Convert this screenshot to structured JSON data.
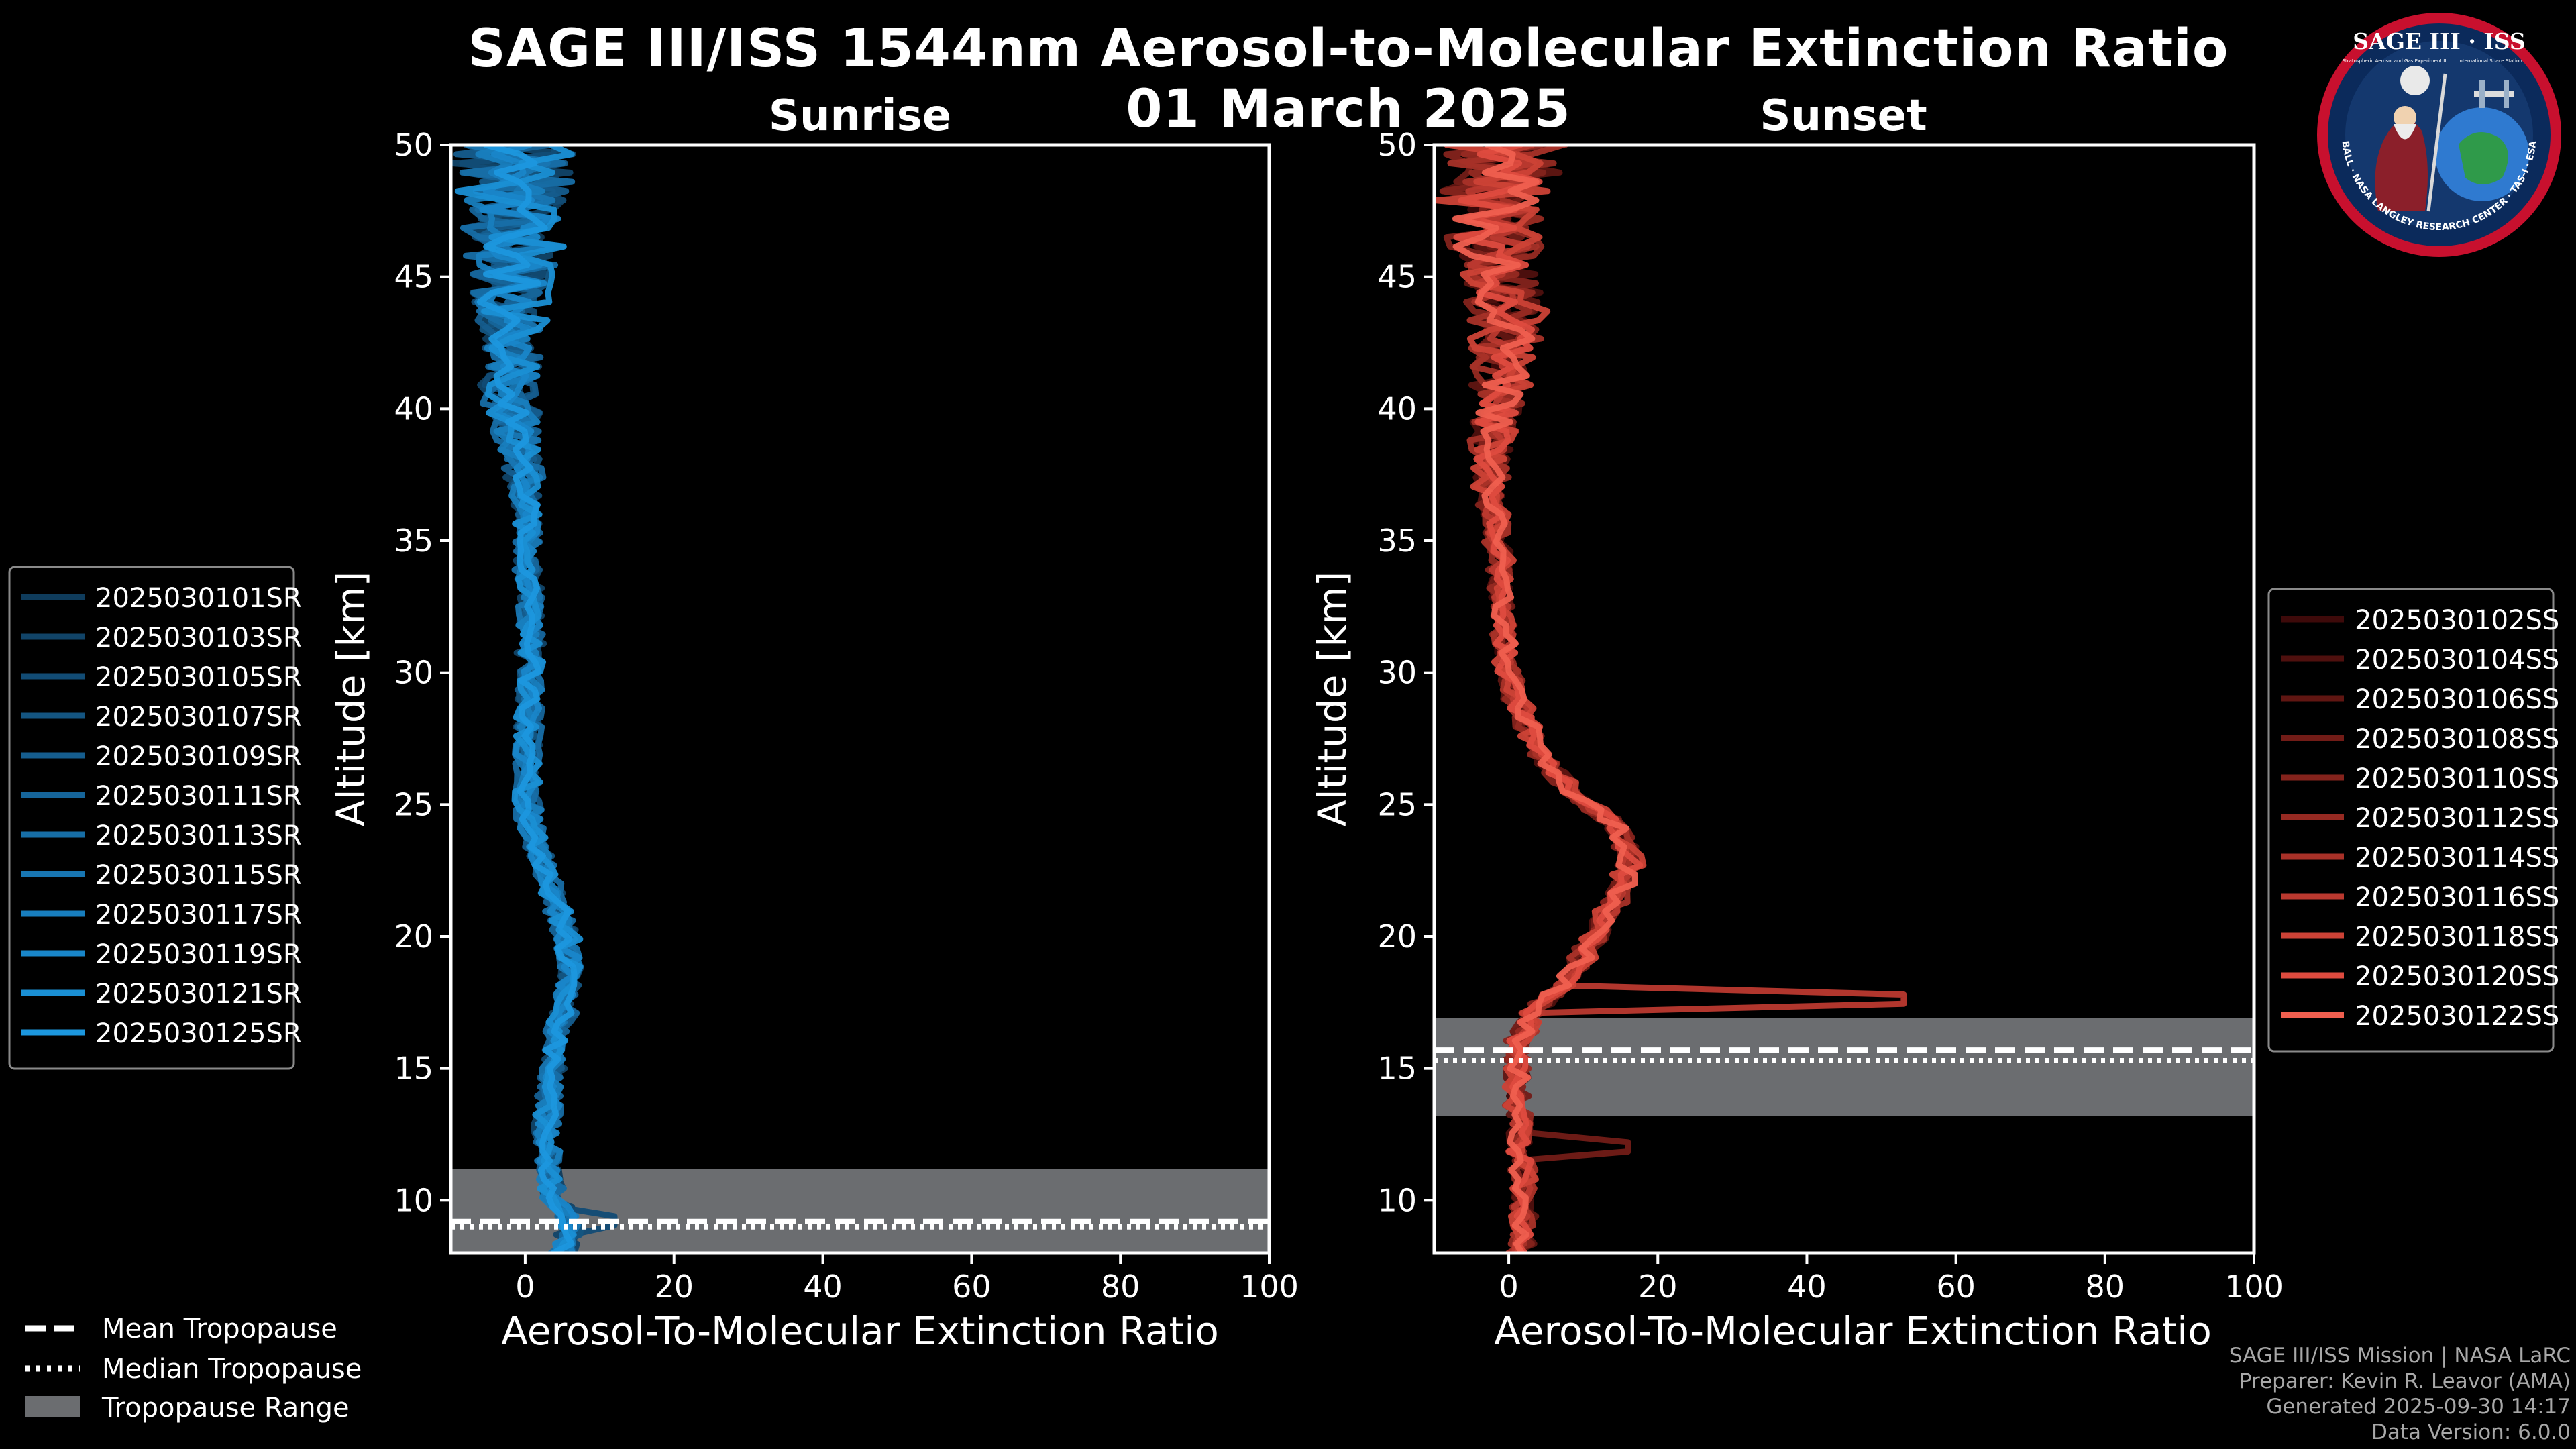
{
  "title": {
    "line1": "SAGE III/ISS 1544nm Aerosol-to-Molecular Extinction Ratio",
    "line2": "01 March 2025"
  },
  "colors": {
    "background": "#000000",
    "sunrise_base": "#1a8fd4",
    "sunset_base": "#ef5f4f",
    "tropopause_band": "#6b6d70"
  },
  "chart_data": [
    {
      "type": "line",
      "title": "Sunrise",
      "xlabel": "Aerosol-To-Molecular Extinction Ratio",
      "ylabel": "Altitude [km]",
      "xlim": [
        -10,
        100
      ],
      "ylim": [
        8,
        50
      ],
      "xticks": [
        0,
        20,
        40,
        60,
        80,
        100
      ],
      "yticks": [
        10,
        15,
        20,
        25,
        30,
        35,
        40,
        45,
        50
      ],
      "tropopause": {
        "mean": 9.2,
        "median": 9.2,
        "range": [
          8,
          11.2
        ]
      },
      "profile_altitudes": [
        8,
        8.5,
        9,
        9.5,
        10,
        11,
        12,
        13,
        14,
        15,
        16,
        17,
        18,
        19,
        20,
        21,
        22,
        23,
        24,
        25,
        26,
        27,
        28,
        29,
        30,
        31,
        32,
        33,
        34,
        35,
        36,
        37,
        38,
        39,
        40,
        41,
        42,
        43,
        44,
        45,
        46,
        47,
        48,
        49,
        50
      ],
      "mean_profile": [
        4.8,
        5.5,
        6.5,
        5.2,
        3.8,
        3.2,
        3.0,
        3.0,
        3.3,
        3.5,
        4.2,
        5.2,
        5.8,
        6.0,
        5.5,
        4.5,
        3.4,
        2.2,
        1.0,
        0.4,
        0.2,
        0.2,
        0.5,
        0.6,
        0.6,
        0.7,
        0.6,
        0.6,
        0.5,
        0.4,
        0.3,
        0.0,
        -0.5,
        -1.0,
        -1.6,
        -2.0,
        -2.2,
        -2.3,
        -2.0,
        -1.6,
        -1.4,
        -1.0,
        -1.2,
        -1.6,
        -1.6
      ],
      "series": [
        {
          "name": "2025030101SR",
          "color": "#0f3c5c"
        },
        {
          "name": "2025030103SR",
          "color": "#114468"
        },
        {
          "name": "2025030105SR",
          "color": "#124c75"
        },
        {
          "name": "2025030107SR",
          "color": "#145581"
        },
        {
          "name": "2025030109SR",
          "color": "#155d8e"
        },
        {
          "name": "2025030111SR",
          "color": "#16659a"
        },
        {
          "name": "2025030113SR",
          "color": "#176ea6"
        },
        {
          "name": "2025030115SR",
          "color": "#1876b2"
        },
        {
          "name": "2025030117SR",
          "color": "#187ebe"
        },
        {
          "name": "2025030119SR",
          "color": "#1986c9"
        },
        {
          "name": "2025030121SR",
          "color": "#1a8fd4"
        },
        {
          "name": "2025030125SR",
          "color": "#1c97de"
        }
      ]
    },
    {
      "type": "line",
      "title": "Sunset",
      "xlabel": "Aerosol-To-Molecular Extinction Ratio",
      "ylabel": "Altitude [km]",
      "xlim": [
        -10,
        100
      ],
      "ylim": [
        8,
        50
      ],
      "xticks": [
        0,
        20,
        40,
        60,
        80,
        100
      ],
      "yticks": [
        10,
        15,
        20,
        25,
        30,
        35,
        40,
        45,
        50
      ],
      "tropopause": {
        "mean": 15.7,
        "median": 15.5,
        "range": [
          13.2,
          16.9
        ]
      },
      "profile_altitudes": [
        8,
        9,
        10,
        11,
        12,
        13,
        14,
        15,
        16,
        16.5,
        17,
        17.5,
        18,
        19,
        20,
        21,
        22,
        23,
        24,
        25,
        26,
        27,
        28,
        29,
        30,
        31,
        32,
        33,
        34,
        35,
        36,
        37,
        38,
        39,
        40,
        41,
        42,
        43,
        44,
        45,
        46,
        47,
        48,
        49,
        50
      ],
      "mean_profile": [
        1.5,
        1.8,
        2.0,
        1.8,
        1.5,
        1.4,
        1.3,
        1.2,
        1.4,
        2.0,
        3.0,
        4.5,
        6.5,
        9.5,
        11.5,
        13.5,
        15.5,
        16.5,
        15.0,
        10.5,
        6.5,
        4.0,
        2.5,
        1.0,
        0.0,
        -0.5,
        -0.8,
        -1.0,
        -1.2,
        -1.5,
        -2.0,
        -2.3,
        -2.5,
        -2.0,
        -1.5,
        -1.0,
        -0.5,
        -0.3,
        -0.5,
        -1.0,
        -1.5,
        -2.0,
        -1.8,
        -1.0,
        -0.5
      ],
      "series": [
        {
          "name": "2025030102SS",
          "color": "#3e0a0a"
        },
        {
          "name": "2025030104SS",
          "color": "#4f100e"
        },
        {
          "name": "2025030106SS",
          "color": "#601612"
        },
        {
          "name": "2025030108SS",
          "color": "#721c17"
        },
        {
          "name": "2025030110SS",
          "color": "#84231c"
        },
        {
          "name": "2025030112SS",
          "color": "#962a22"
        },
        {
          "name": "2025030114SS",
          "color": "#a83128"
        },
        {
          "name": "2025030116SS",
          "color": "#ba392f"
        },
        {
          "name": "2025030118SS",
          "color": "#cc4236"
        },
        {
          "name": "2025030120SS",
          "color": "#de4b3f"
        },
        {
          "name": "2025030122SS",
          "color": "#ef5f4f"
        }
      ]
    }
  ],
  "legend_tropopause": {
    "mean": "Mean Tropopause",
    "median": "Median Tropopause",
    "range": "Tropopause Range"
  },
  "logo": {
    "text": "SAGE III · ISS",
    "sub_left": "Stratospheric Aerosol and Gas Experiment III",
    "sub_right": "International Space Station",
    "ring": "BALL · NASA LANGLEY RESEARCH CENTER · TAS-I · ESA"
  },
  "credits": {
    "line1": "SAGE III/ISS Mission | NASA LaRC",
    "line2": "Preparer: Kevin R. Leavor (AMA)",
    "line3": "Generated 2025-09-30 14:17",
    "line4": "Data Version: 6.0.0"
  }
}
